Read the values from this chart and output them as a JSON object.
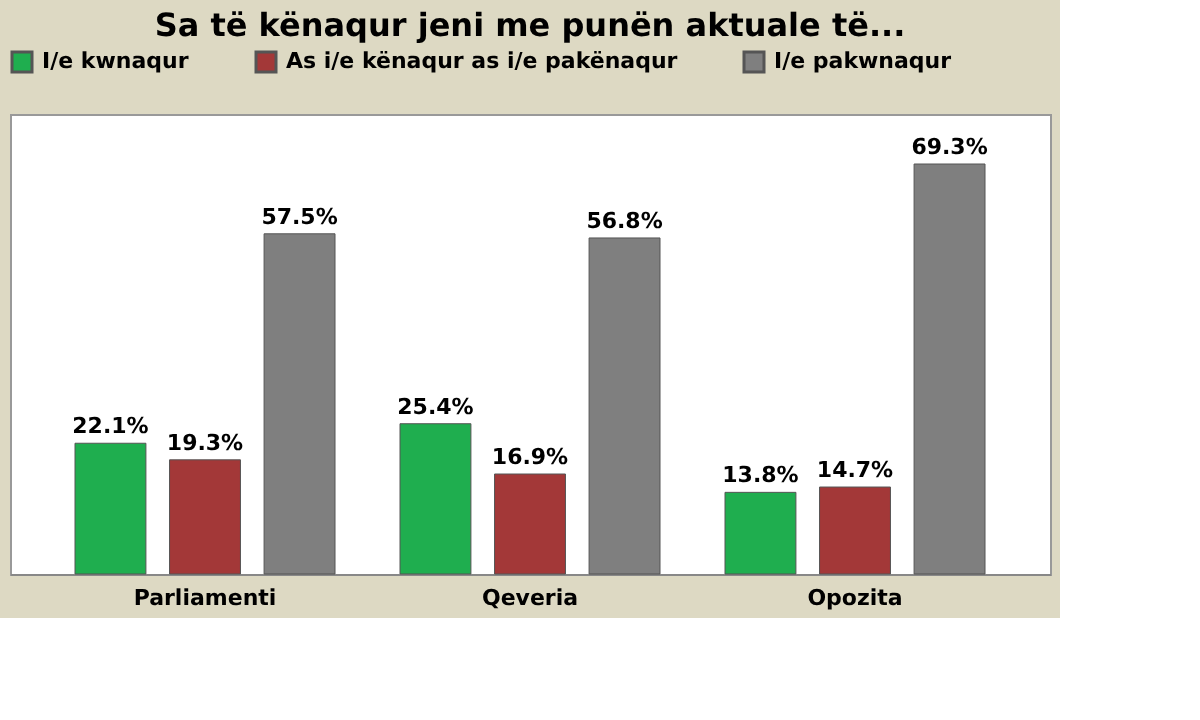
{
  "chart_data": {
    "type": "bar",
    "title": "Sa të kënaqur jeni me punën aktuale të...",
    "categories": [
      "Parliamenti",
      "Qeveria",
      "Opozita"
    ],
    "series": [
      {
        "name": "I/e kwnaqur",
        "color": "#1fae4f",
        "values": [
          22.1,
          25.4,
          13.8
        ],
        "value_labels": [
          "22.1%",
          "25.4%",
          "13.8%"
        ]
      },
      {
        "name": "As i/e kënaqur as i/e pakënaqur",
        "color": "#a33838",
        "values": [
          19.3,
          16.9,
          14.7
        ],
        "value_labels": [
          "19.3%",
          "16.9%",
          "14.7%"
        ]
      },
      {
        "name": "I/e pakwnaqur",
        "color": "#7f7f7f",
        "values": [
          57.5,
          56.8,
          69.3
        ],
        "value_labels": [
          "57.5%",
          "56.8%",
          "69.3%"
        ]
      }
    ],
    "legend": "top",
    "grid": false
  }
}
